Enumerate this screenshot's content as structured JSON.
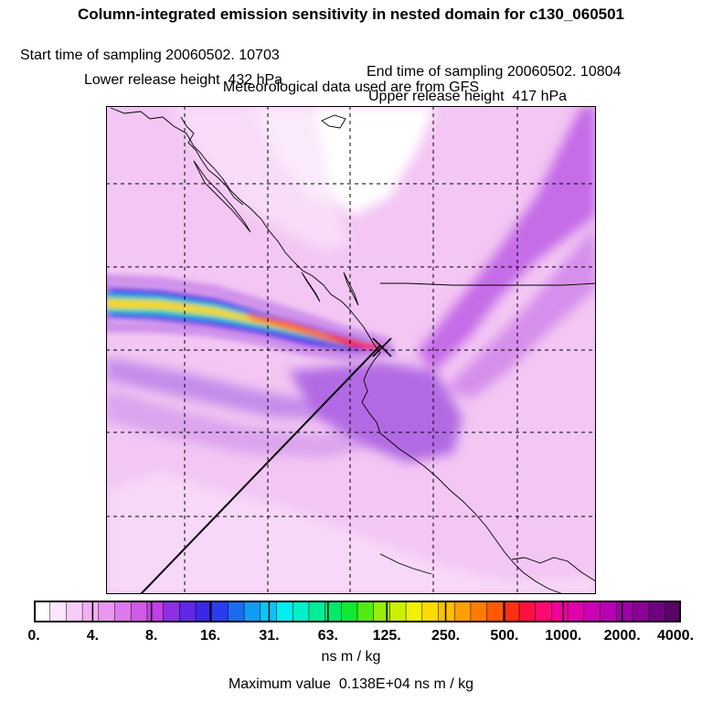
{
  "title": "Column-integrated emission sensitivity in nested domain for c130_060501",
  "info": {
    "start": "Start time of sampling 20060502. 10703",
    "end": "End time of sampling 20060502. 10804",
    "lower": "Lower release height  432 hPa",
    "upper": "Upper release height  417 hPa",
    "met": "Meteorological data used are from GFS"
  },
  "colorbar": {
    "tick_labels": [
      "0.",
      "4.",
      "8.",
      "16.",
      "31.",
      "63.",
      "125.",
      "250.",
      "500.",
      "1000.",
      "2000.",
      "4000."
    ],
    "colors": [
      "#ffffff",
      "#fde6fd",
      "#f8ccf8",
      "#f2b0f2",
      "#e996ee",
      "#df78ec",
      "#d25ae8",
      "#c23ee6",
      "#8e2ee6",
      "#6028e6",
      "#3a28e6",
      "#2a3cf0",
      "#1a6cf0",
      "#109cf4",
      "#08c6f8",
      "#00eef4",
      "#00f0c8",
      "#00ee98",
      "#00ea6c",
      "#10ea30",
      "#50ec10",
      "#96ee08",
      "#ccf000",
      "#f2f000",
      "#ffdc00",
      "#ffc000",
      "#ffa000",
      "#ff7c00",
      "#ff5a00",
      "#ff3010",
      "#ff1040",
      "#ff0870",
      "#f00098",
      "#e000ac",
      "#cc00b4",
      "#b800b4",
      "#a000aa",
      "#8a0096",
      "#700080",
      "#5a0068"
    ],
    "unit": "ns m / kg"
  },
  "max_value": "Maximum value  0.138E+04 ns m / kg",
  "map": {
    "release_point_fraction": [
      0.57,
      0.49
    ],
    "plume_color_core": "#ff1a1a"
  }
}
